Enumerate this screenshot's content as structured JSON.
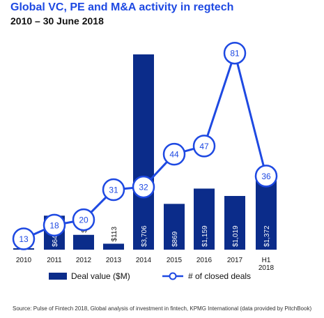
{
  "title": "Global VC, PE and M&A activity in regtech",
  "subtitle": "2010 – 30 June 2018",
  "source": "Source: Pulse of Fintech 2018, Global analysis of investment in fintech, KPMG International (data provided by PitchBook)",
  "colors": {
    "title": "#1e49e2",
    "bar": "#0b2c8a",
    "line": "#1e49e2",
    "circle_fill": "#ffffff",
    "bar_label": "#ffffff",
    "outside_label": "#111111"
  },
  "chart_data": {
    "type": "bar",
    "categories": [
      "2010",
      "2011",
      "2012",
      "2013",
      "2014",
      "2015",
      "2016",
      "2017",
      "H1 2018"
    ],
    "series": [
      {
        "name": "Deal value ($M)",
        "type": "bar",
        "values": [
          25,
          645,
          281,
          113,
          3706,
          869,
          1159,
          1019,
          1372
        ],
        "labels": [
          "$25",
          "$645",
          "$281",
          "$113",
          "$3,706",
          "$869",
          "$1,159",
          "$1,019",
          "$1,372"
        ]
      },
      {
        "name": "# of closed deals",
        "type": "line",
        "values": [
          13,
          18,
          20,
          31,
          32,
          44,
          47,
          81,
          36
        ]
      }
    ],
    "legend_position": "bottom",
    "grid": false
  }
}
